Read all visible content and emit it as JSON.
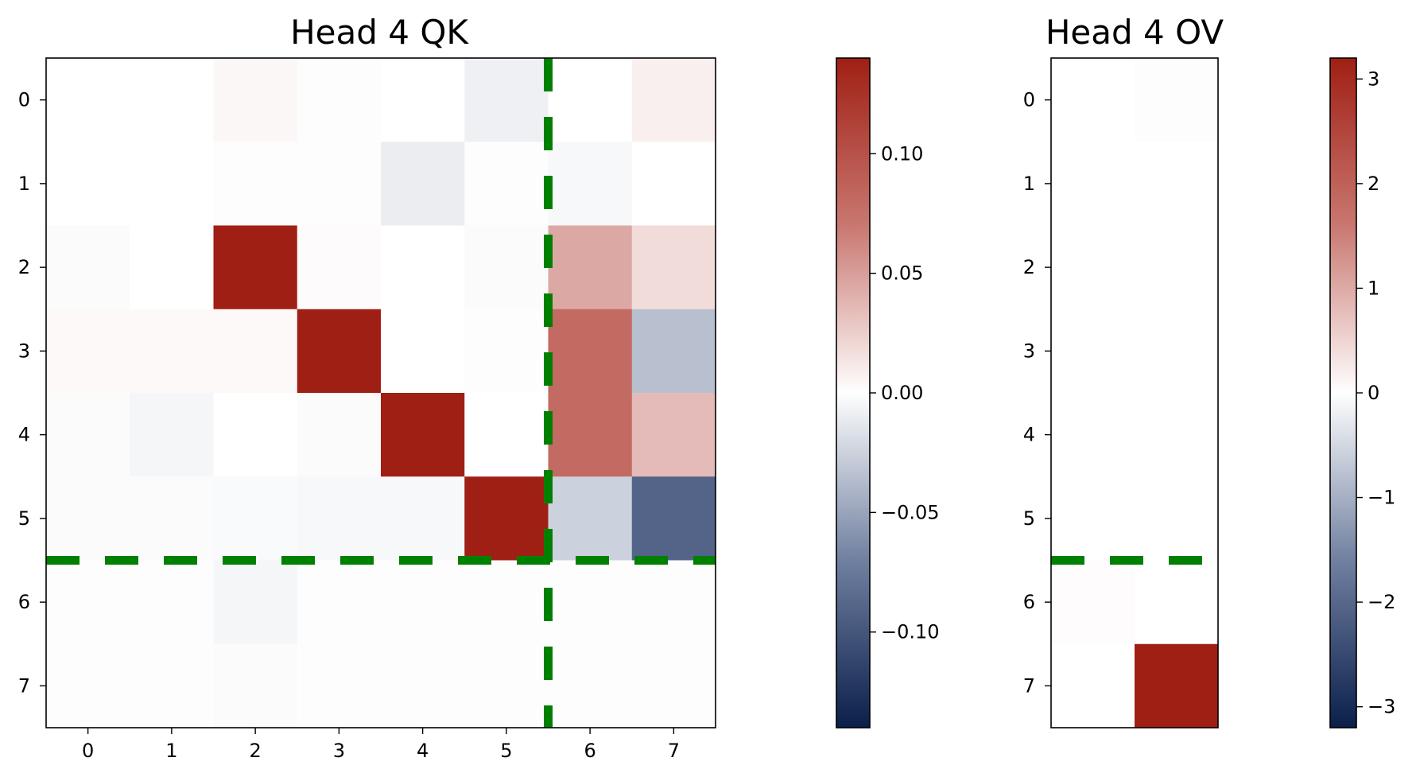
{
  "chart_data": [
    {
      "type": "heatmap",
      "title": "Head 4 QK",
      "x_ticks": [
        "0",
        "1",
        "2",
        "3",
        "4",
        "5",
        "6",
        "7"
      ],
      "y_ticks": [
        "0",
        "1",
        "2",
        "3",
        "4",
        "5",
        "6",
        "7"
      ],
      "values": [
        [
          0.0,
          0.0,
          0.004,
          0.001,
          0.0,
          -0.008,
          0.0,
          0.008
        ],
        [
          0.0,
          0.0,
          -0.001,
          -0.001,
          -0.01,
          -0.001,
          -0.004,
          0.0
        ],
        [
          -0.002,
          0.0,
          0.14,
          0.002,
          0.0,
          -0.002,
          0.045,
          0.018
        ],
        [
          0.003,
          0.003,
          0.003,
          0.14,
          0.0,
          -0.001,
          0.08,
          -0.035
        ],
        [
          -0.002,
          -0.005,
          0.0,
          -0.002,
          0.14,
          0.0,
          0.08,
          0.035
        ],
        [
          -0.002,
          -0.002,
          -0.003,
          -0.004,
          -0.004,
          0.14,
          -0.025,
          -0.09
        ],
        [
          -0.001,
          -0.001,
          -0.005,
          -0.001,
          -0.001,
          -0.001,
          -0.001,
          -0.001
        ],
        [
          -0.001,
          -0.001,
          -0.002,
          -0.001,
          -0.001,
          -0.001,
          -0.001,
          -0.001
        ]
      ],
      "dashed_lines": {
        "horizontal_after_row": 5,
        "vertical_after_col": 5,
        "color": "#008000"
      },
      "colorbar": {
        "min": -0.14,
        "max": 0.14,
        "ticks": [
          "0.10",
          "0.05",
          "0.00",
          "−0.05",
          "−0.10"
        ],
        "tick_values": [
          0.1,
          0.05,
          0.0,
          -0.05,
          -0.1
        ]
      }
    },
    {
      "type": "heatmap",
      "title": "Head 4 OV",
      "x_ticks": [],
      "y_ticks": [
        "0",
        "1",
        "2",
        "3",
        "4",
        "5",
        "6",
        "7"
      ],
      "values": [
        [
          0.0,
          0.02
        ],
        [
          0.0,
          0.0
        ],
        [
          0.0,
          0.0
        ],
        [
          0.0,
          0.0
        ],
        [
          0.0,
          0.0
        ],
        [
          0.0,
          0.0
        ],
        [
          0.03,
          0.0
        ],
        [
          0.0,
          3.2
        ]
      ],
      "dashed_lines": {
        "horizontal_after_row": 5,
        "color": "#008000"
      },
      "colorbar": {
        "min": -3.2,
        "max": 3.2,
        "ticks": [
          "3",
          "2",
          "1",
          "0",
          "−1",
          "−2",
          "−3"
        ],
        "tick_values": [
          3,
          2,
          1,
          0,
          -1,
          -2,
          -3
        ]
      }
    }
  ],
  "colormap": {
    "negative": "#0b1f4b",
    "zero": "#ffffff",
    "positive": "#a01f14"
  }
}
